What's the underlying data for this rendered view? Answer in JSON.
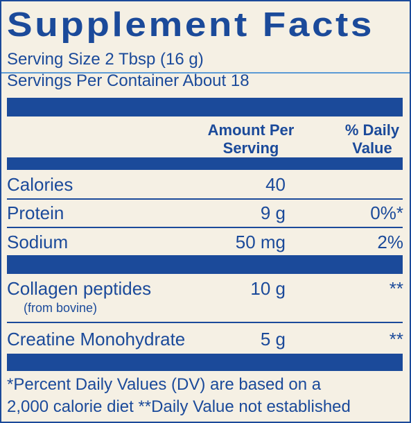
{
  "title": "Supplement Facts",
  "serving_size": "Serving Size 2 Tbsp (16 g)",
  "servings_per_container": "Servings Per Container About 18",
  "table": {
    "header": {
      "amount": "Amount Per Serving",
      "daily_value": "% Daily Value"
    },
    "rows": [
      {
        "name": "Calories",
        "amount": "40"
      },
      {
        "name": "Protein",
        "amount": "9 g",
        "daily_value": "0%*"
      },
      {
        "name": "Sodium",
        "amount": "50 mg",
        "daily_value": "2%"
      },
      {
        "name": "Collagen peptides",
        "note": "(from bovine)",
        "amount": "10 g",
        "daily_value": "**"
      },
      {
        "name": "Creatine Monohydrate",
        "amount": "5 g",
        "daily_value": "**"
      }
    ]
  },
  "footnote": [
    "*Percent Daily Values (DV) are based on a",
    "2,000 calorie diet **Daily Value not established"
  ]
}
